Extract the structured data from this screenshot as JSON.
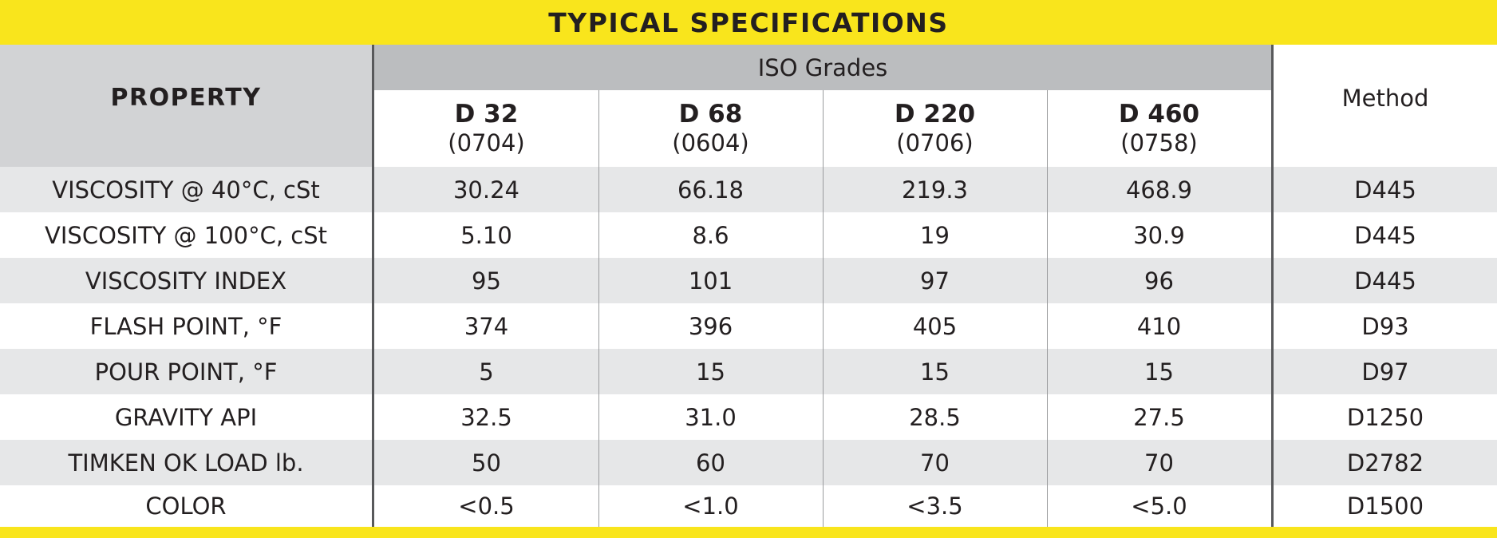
{
  "title": "TYPICAL SPECIFICATIONS",
  "property_header": "PROPERTY",
  "iso_header": "ISO Grades",
  "method_header": "Method",
  "grades": [
    {
      "name": "D 32",
      "code": "(0704)"
    },
    {
      "name": "D 68",
      "code": "(0604)"
    },
    {
      "name": "D 220",
      "code": "(0706)"
    },
    {
      "name": "D 460",
      "code": "(0758)"
    }
  ],
  "rows": [
    {
      "property": "VISCOSITY @ 40°C, cSt",
      "values": [
        "30.24",
        "66.18",
        "219.3",
        "468.9"
      ],
      "method": "D445"
    },
    {
      "property": "VISCOSITY @ 100°C, cSt",
      "values": [
        "5.10",
        "8.6",
        "19",
        "30.9"
      ],
      "method": "D445"
    },
    {
      "property": "VISCOSITY INDEX",
      "values": [
        "95",
        "101",
        "97",
        "96"
      ],
      "method": "D445"
    },
    {
      "property": "FLASH POINT, °F",
      "values": [
        "374",
        "396",
        "405",
        "410"
      ],
      "method": "D93"
    },
    {
      "property": "POUR POINT, °F",
      "values": [
        "5",
        "15",
        "15",
        "15"
      ],
      "method": "D97"
    },
    {
      "property": "GRAVITY API",
      "values": [
        "32.5",
        "31.0",
        "28.5",
        "27.5"
      ],
      "method": "D1250"
    },
    {
      "property": "TIMKEN OK LOAD lb.",
      "values": [
        "50",
        "60",
        "70",
        "70"
      ],
      "method": "D2782"
    },
    {
      "property": "COLOR",
      "values": [
        "<0.5",
        "<1.0",
        "<3.5",
        "<5.0"
      ],
      "method": "D1500"
    }
  ],
  "colors": {
    "accent_yellow": "#f9e51c",
    "header_gray": "#d2d3d5",
    "iso_gray": "#bbbdbf",
    "row_shade": "#e6e7e8",
    "text": "#231f20"
  }
}
